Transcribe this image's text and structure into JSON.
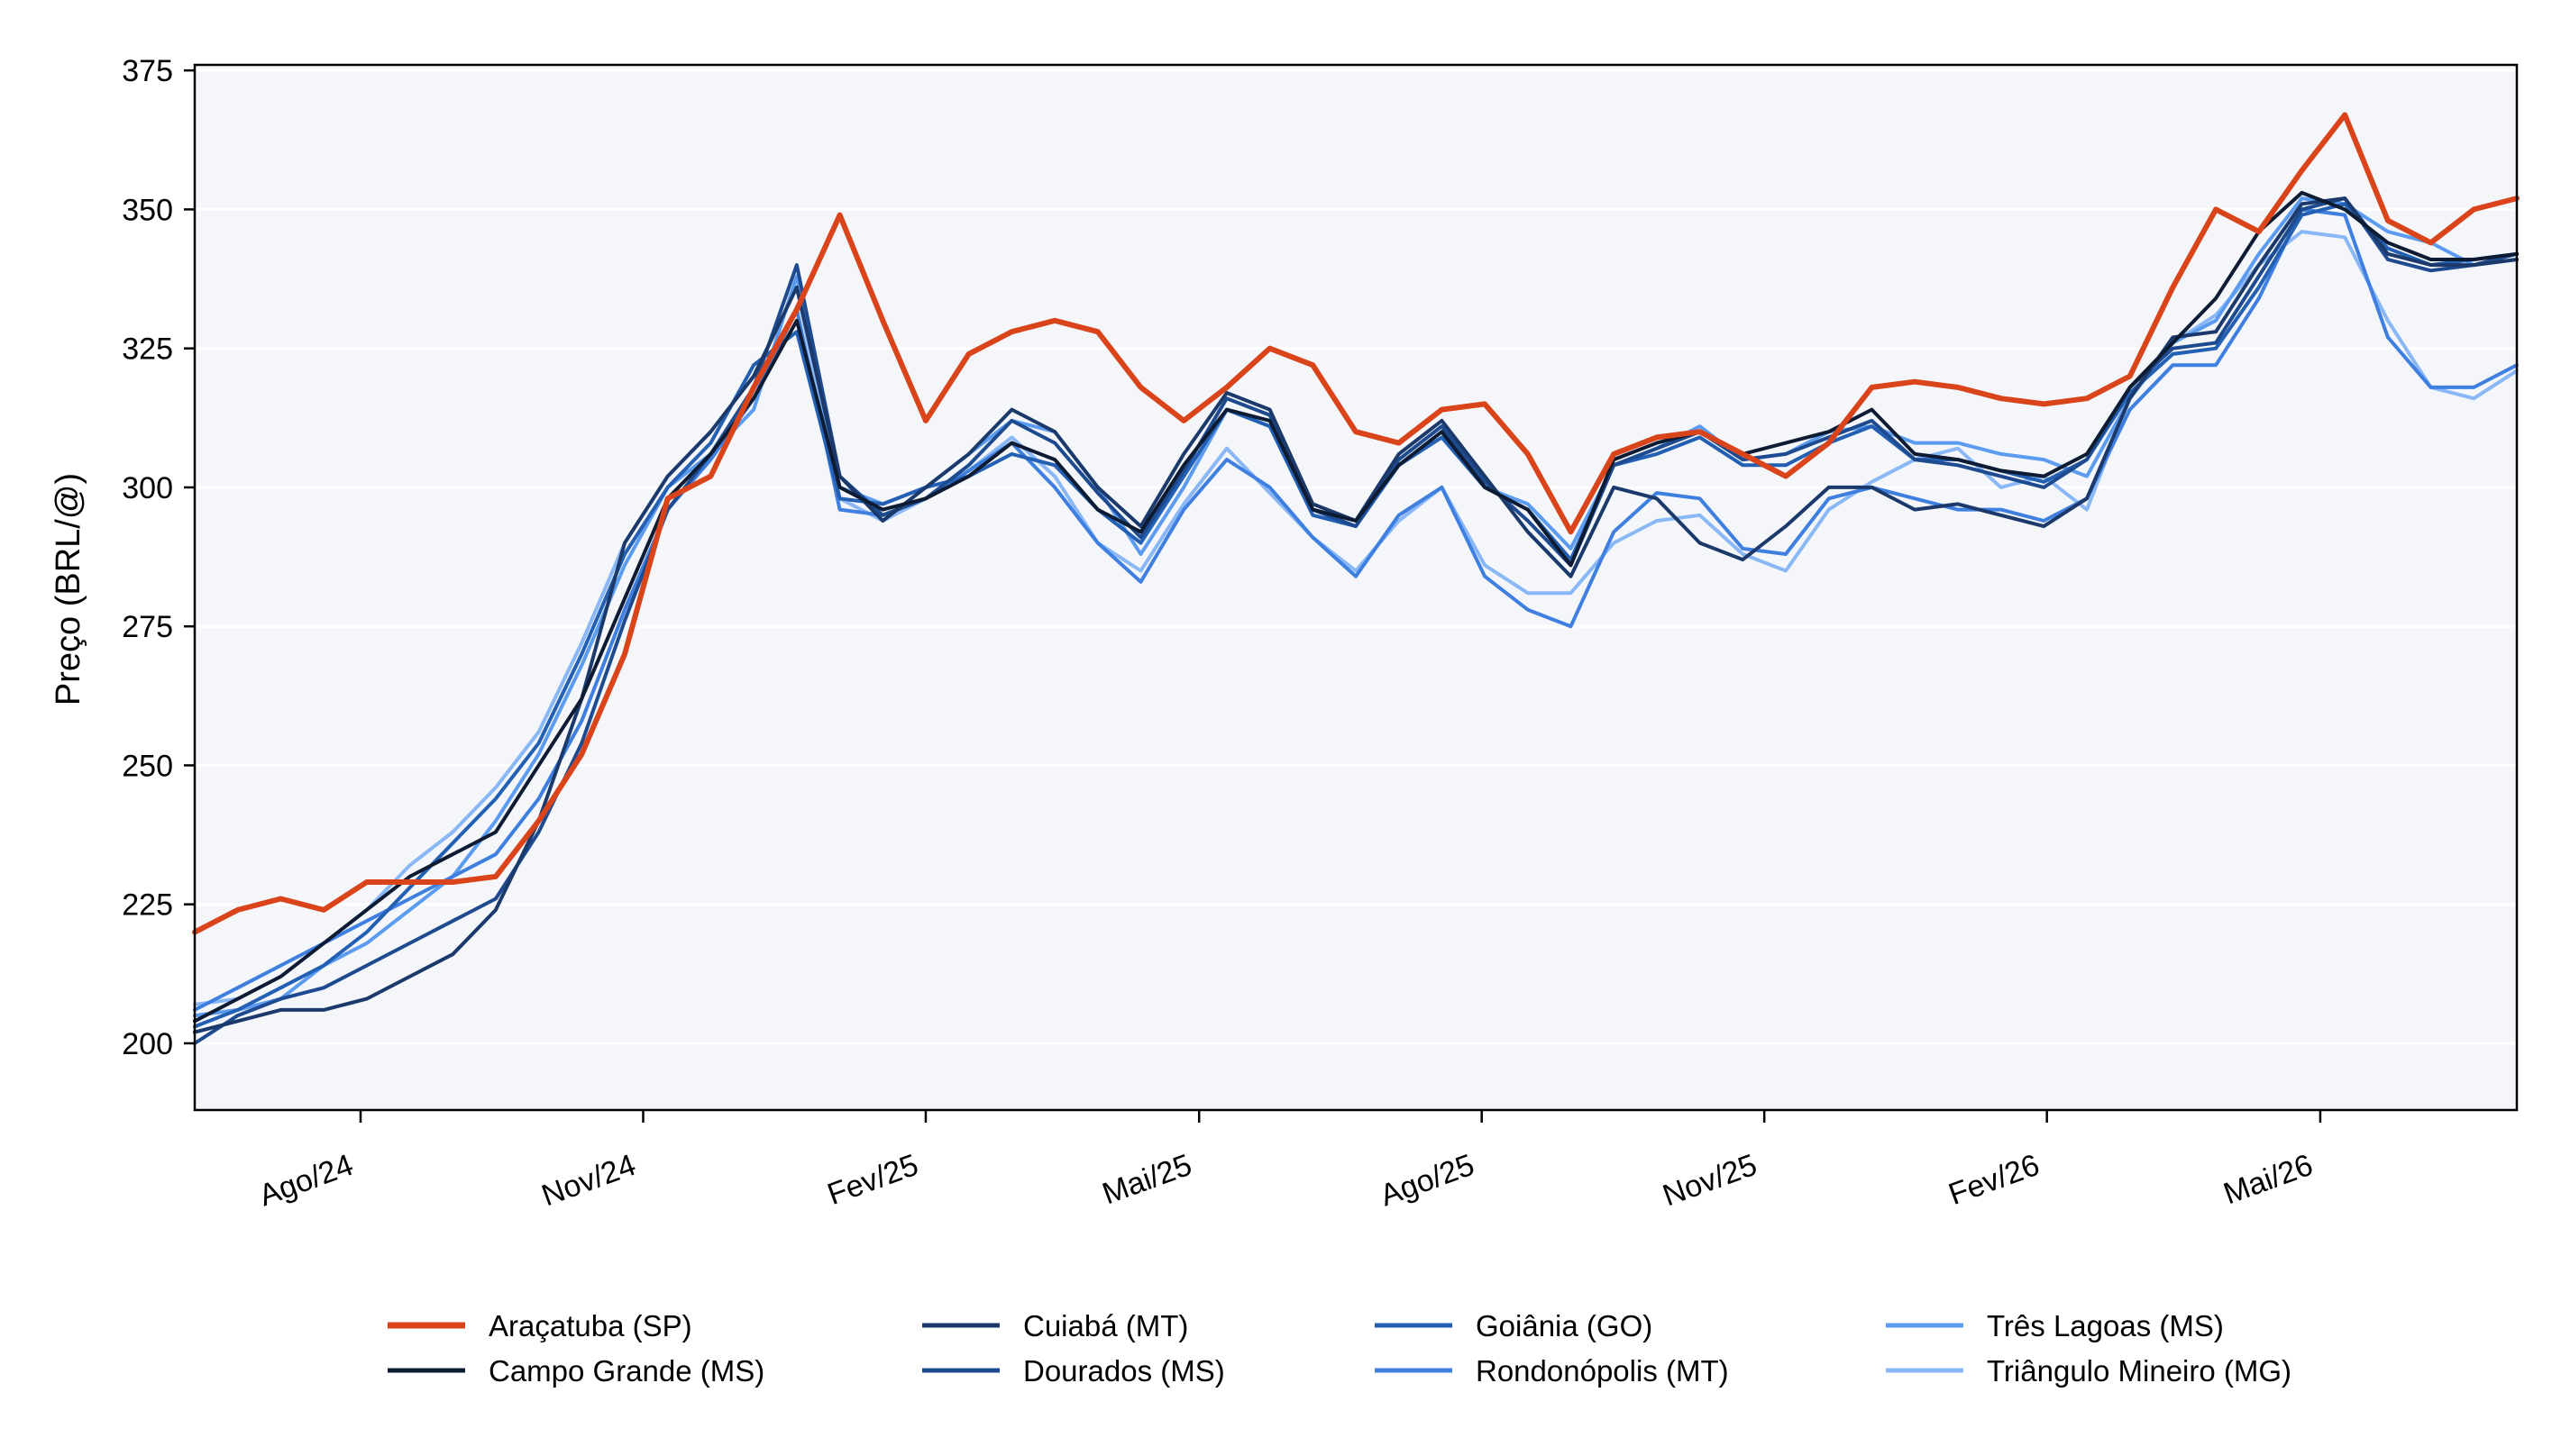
{
  "chart_data": {
    "type": "line",
    "title": "",
    "xlabel": "",
    "ylabel": "Preço (BRL/@)",
    "ylim": [
      188,
      376
    ],
    "xlim": [
      "2024-06-08",
      "2026-07-04"
    ],
    "y_ticks": [
      200,
      225,
      250,
      275,
      300,
      325,
      350,
      375
    ],
    "x_ticks": [
      {
        "date": "2024-08-01",
        "label": "Ago/24"
      },
      {
        "date": "2024-11-01",
        "label": "Nov/24"
      },
      {
        "date": "2025-02-01",
        "label": "Fev/25"
      },
      {
        "date": "2025-05-01",
        "label": "Mai/25"
      },
      {
        "date": "2025-08-01",
        "label": "Ago/25"
      },
      {
        "date": "2025-11-01",
        "label": "Nov/25"
      },
      {
        "date": "2026-02-01",
        "label": "Fev/26"
      },
      {
        "date": "2026-05-01",
        "label": "Mai/26"
      }
    ],
    "grid": "horizontal",
    "legend_position": "bottom",
    "background": "#f4f6fa",
    "dates": [
      "2024-06-08",
      "2024-06-22",
      "2024-07-06",
      "2024-07-20",
      "2024-08-03",
      "2024-08-17",
      "2024-08-31",
      "2024-09-14",
      "2024-09-28",
      "2024-10-12",
      "2024-10-26",
      "2024-11-09",
      "2024-11-23",
      "2024-12-07",
      "2024-12-21",
      "2025-01-04",
      "2025-01-18",
      "2025-02-01",
      "2025-02-15",
      "2025-03-01",
      "2025-03-15",
      "2025-03-29",
      "2025-04-12",
      "2025-04-26",
      "2025-05-10",
      "2025-05-24",
      "2025-06-07",
      "2025-06-21",
      "2025-07-05",
      "2025-07-19",
      "2025-08-02",
      "2025-08-16",
      "2025-08-30",
      "2025-09-13",
      "2025-09-27",
      "2025-10-11",
      "2025-10-25",
      "2025-11-08",
      "2025-11-22",
      "2025-12-06",
      "2025-12-20",
      "2026-01-03",
      "2026-01-17",
      "2026-01-31",
      "2026-02-14",
      "2026-02-28",
      "2026-03-14",
      "2026-03-28",
      "2026-04-11",
      "2026-04-25",
      "2026-05-09",
      "2026-05-23",
      "2026-06-06",
      "2026-06-20",
      "2026-07-04"
    ],
    "series": [
      {
        "name": "Araçatuba (SP)",
        "color": "#d9441a",
        "width": 6,
        "values": [
          220,
          224,
          226,
          224,
          229,
          229,
          229,
          230,
          240,
          252,
          270,
          298,
          302,
          318,
          332,
          349,
          330,
          312,
          324,
          328,
          330,
          328,
          318,
          312,
          318,
          325,
          322,
          310,
          308,
          314,
          315,
          306,
          292,
          306,
          309,
          310,
          306,
          302,
          308,
          318,
          319,
          318,
          316,
          315,
          316,
          320,
          336,
          350,
          346,
          357,
          367,
          348,
          344,
          350,
          352
        ]
      },
      {
        "name": "Campo Grande (MS)",
        "color": "#0d1b33",
        "width": 4,
        "values": [
          204,
          208,
          212,
          218,
          224,
          230,
          234,
          238,
          250,
          262,
          280,
          298,
          306,
          316,
          330,
          300,
          296,
          298,
          302,
          308,
          305,
          296,
          292,
          304,
          314,
          312,
          296,
          294,
          304,
          310,
          300,
          296,
          286,
          305,
          308,
          310,
          306,
          308,
          310,
          314,
          306,
          305,
          303,
          302,
          306,
          318,
          326,
          334,
          346,
          353,
          350,
          344,
          341,
          341,
          342
        ]
      },
      {
        "name": "Cuiabá (MT)",
        "color": "#1b3a6b",
        "width": 4,
        "values": [
          202,
          204,
          206,
          206,
          208,
          212,
          216,
          224,
          240,
          262,
          290,
          302,
          310,
          320,
          336,
          302,
          294,
          300,
          306,
          314,
          310,
          300,
          293,
          306,
          317,
          314,
          297,
          294,
          306,
          312,
          302,
          292,
          284,
          300,
          298,
          290,
          287,
          293,
          300,
          300,
          296,
          297,
          295,
          293,
          298,
          316,
          327,
          328,
          340,
          351,
          352,
          342,
          340,
          340,
          341
        ]
      },
      {
        "name": "Dourados (MS)",
        "color": "#1e4b8f",
        "width": 4,
        "values": [
          200,
          205,
          208,
          210,
          214,
          218,
          222,
          226,
          238,
          254,
          276,
          296,
          306,
          318,
          340,
          302,
          295,
          298,
          304,
          312,
          308,
          299,
          291,
          303,
          316,
          313,
          296,
          293,
          305,
          311,
          301,
          294,
          286,
          304,
          307,
          310,
          305,
          306,
          309,
          312,
          305,
          304,
          302,
          300,
          305,
          318,
          325,
          326,
          338,
          350,
          352,
          341,
          339,
          340,
          342
        ]
      },
      {
        "name": "Goiânia (GO)",
        "color": "#2360b3",
        "width": 4,
        "values": [
          203,
          206,
          210,
          214,
          220,
          228,
          236,
          244,
          254,
          270,
          288,
          300,
          308,
          322,
          328,
          298,
          297,
          300,
          302,
          306,
          304,
          296,
          290,
          302,
          314,
          311,
          295,
          293,
          304,
          309,
          300,
          296,
          287,
          304,
          306,
          309,
          304,
          304,
          308,
          311,
          305,
          305,
          303,
          301,
          305,
          317,
          324,
          325,
          336,
          349,
          351,
          343,
          340,
          341,
          342
        ]
      },
      {
        "name": "Rondonópolis (MT)",
        "color": "#3f7fe0",
        "width": 4,
        "values": [
          206,
          210,
          214,
          218,
          222,
          226,
          230,
          234,
          244,
          258,
          278,
          296,
          305,
          316,
          332,
          296,
          295,
          298,
          303,
          308,
          300,
          290,
          283,
          296,
          305,
          300,
          291,
          284,
          295,
          300,
          284,
          278,
          275,
          292,
          299,
          298,
          289,
          288,
          298,
          300,
          298,
          296,
          296,
          294,
          298,
          314,
          322,
          322,
          334,
          350,
          349,
          327,
          318,
          318,
          322
        ]
      },
      {
        "name": "Três Lagoas (MS)",
        "color": "#5b9cf0",
        "width": 4,
        "values": [
          205,
          206,
          208,
          214,
          218,
          224,
          230,
          240,
          252,
          268,
          286,
          300,
          306,
          314,
          338,
          300,
          297,
          300,
          306,
          312,
          310,
          300,
          288,
          300,
          314,
          311,
          296,
          294,
          304,
          310,
          300,
          297,
          289,
          304,
          307,
          311,
          305,
          306,
          310,
          311,
          308,
          308,
          306,
          305,
          302,
          316,
          326,
          330,
          342,
          352,
          351,
          346,
          344,
          340,
          341
        ]
      },
      {
        "name": "Triângulo Mineiro (MG)",
        "color": "#8ab8f6",
        "width": 4,
        "values": [
          207,
          208,
          212,
          218,
          224,
          232,
          238,
          246,
          256,
          272,
          290,
          302,
          310,
          320,
          336,
          298,
          294,
          298,
          303,
          309,
          302,
          290,
          285,
          297,
          307,
          299,
          291,
          285,
          294,
          300,
          286,
          281,
          281,
          290,
          294,
          295,
          288,
          285,
          296,
          301,
          305,
          307,
          300,
          302,
          296,
          316,
          326,
          331,
          340,
          346,
          345,
          330,
          318,
          316,
          321
        ]
      }
    ]
  }
}
